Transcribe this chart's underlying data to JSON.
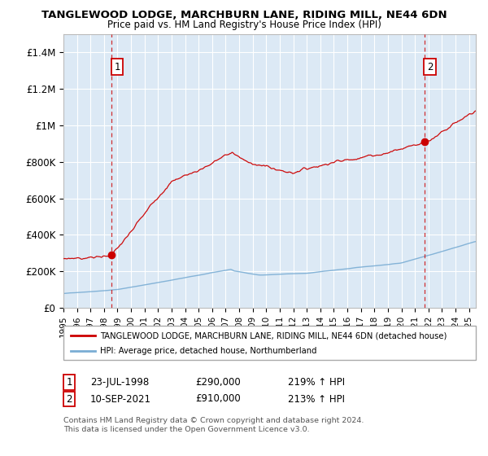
{
  "title": "TANGLEWOOD LODGE, MARCHBURN LANE, RIDING MILL, NE44 6DN",
  "subtitle": "Price paid vs. HM Land Registry's House Price Index (HPI)",
  "bg_color": "#dce9f5",
  "outer_bg": "#ffffff",
  "red_line_color": "#cc0000",
  "blue_line_color": "#7aadd4",
  "ylim": [
    0,
    1500000
  ],
  "yticks": [
    0,
    200000,
    400000,
    600000,
    800000,
    1000000,
    1200000,
    1400000
  ],
  "ytick_labels": [
    "£0",
    "£200K",
    "£400K",
    "£600K",
    "£800K",
    "£1M",
    "£1.2M",
    "£1.4M"
  ],
  "sale1_price": 290000,
  "sale1_year": 1998.55,
  "sale1_label": "1",
  "sale2_price": 910000,
  "sale2_year": 2021.69,
  "sale2_label": "2",
  "legend_red_label": "TANGLEWOOD LODGE, MARCHBURN LANE, RIDING MILL, NE44 6DN (detached house)",
  "legend_blue_label": "HPI: Average price, detached house, Northumberland",
  "annotation1_date": "23-JUL-1998",
  "annotation1_price": "£290,000",
  "annotation1_hpi": "219% ↑ HPI",
  "annotation2_date": "10-SEP-2021",
  "annotation2_price": "£910,000",
  "annotation2_hpi": "213% ↑ HPI",
  "copyright": "Contains HM Land Registry data © Crown copyright and database right 2024.\nThis data is licensed under the Open Government Licence v3.0.",
  "xstart": 1995.0,
  "xend": 2025.5
}
